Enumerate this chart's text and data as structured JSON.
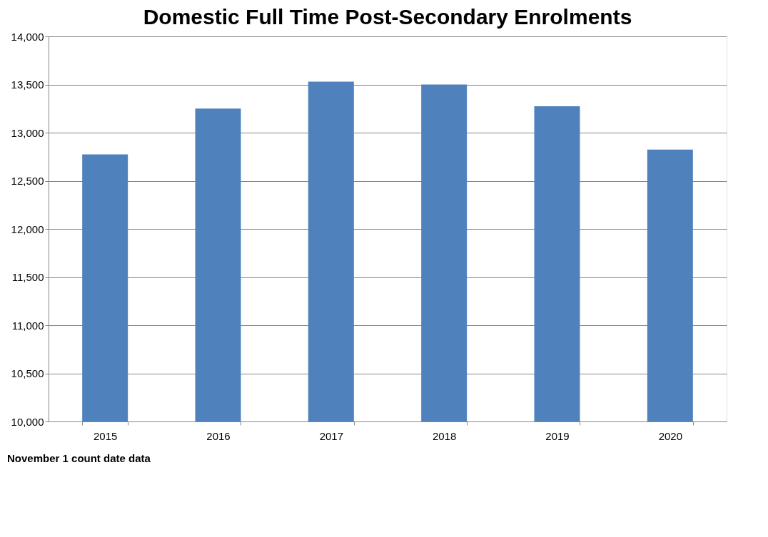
{
  "chart_data": {
    "type": "bar",
    "title": "Domestic Full Time Post-Secondary Enrolments",
    "categories": [
      "2015",
      "2016",
      "2017",
      "2018",
      "2019",
      "2020"
    ],
    "values": [
      12775,
      13250,
      13530,
      13500,
      13275,
      12825
    ],
    "color": "#4f81bd",
    "ylim": [
      10000,
      14000
    ],
    "yticks": [
      {
        "value": 10000,
        "label": "10,000"
      },
      {
        "value": 10500,
        "label": "10,500"
      },
      {
        "value": 11000,
        "label": "11,000"
      },
      {
        "value": 11500,
        "label": "11,500"
      },
      {
        "value": 12000,
        "label": "12,000"
      },
      {
        "value": 12500,
        "label": "12,500"
      },
      {
        "value": 13000,
        "label": "13,000"
      },
      {
        "value": 13500,
        "label": "13,500"
      },
      {
        "value": 14000,
        "label": "14,000"
      }
    ],
    "grid": "y",
    "annotations": [
      "November 1 count date data"
    ]
  }
}
